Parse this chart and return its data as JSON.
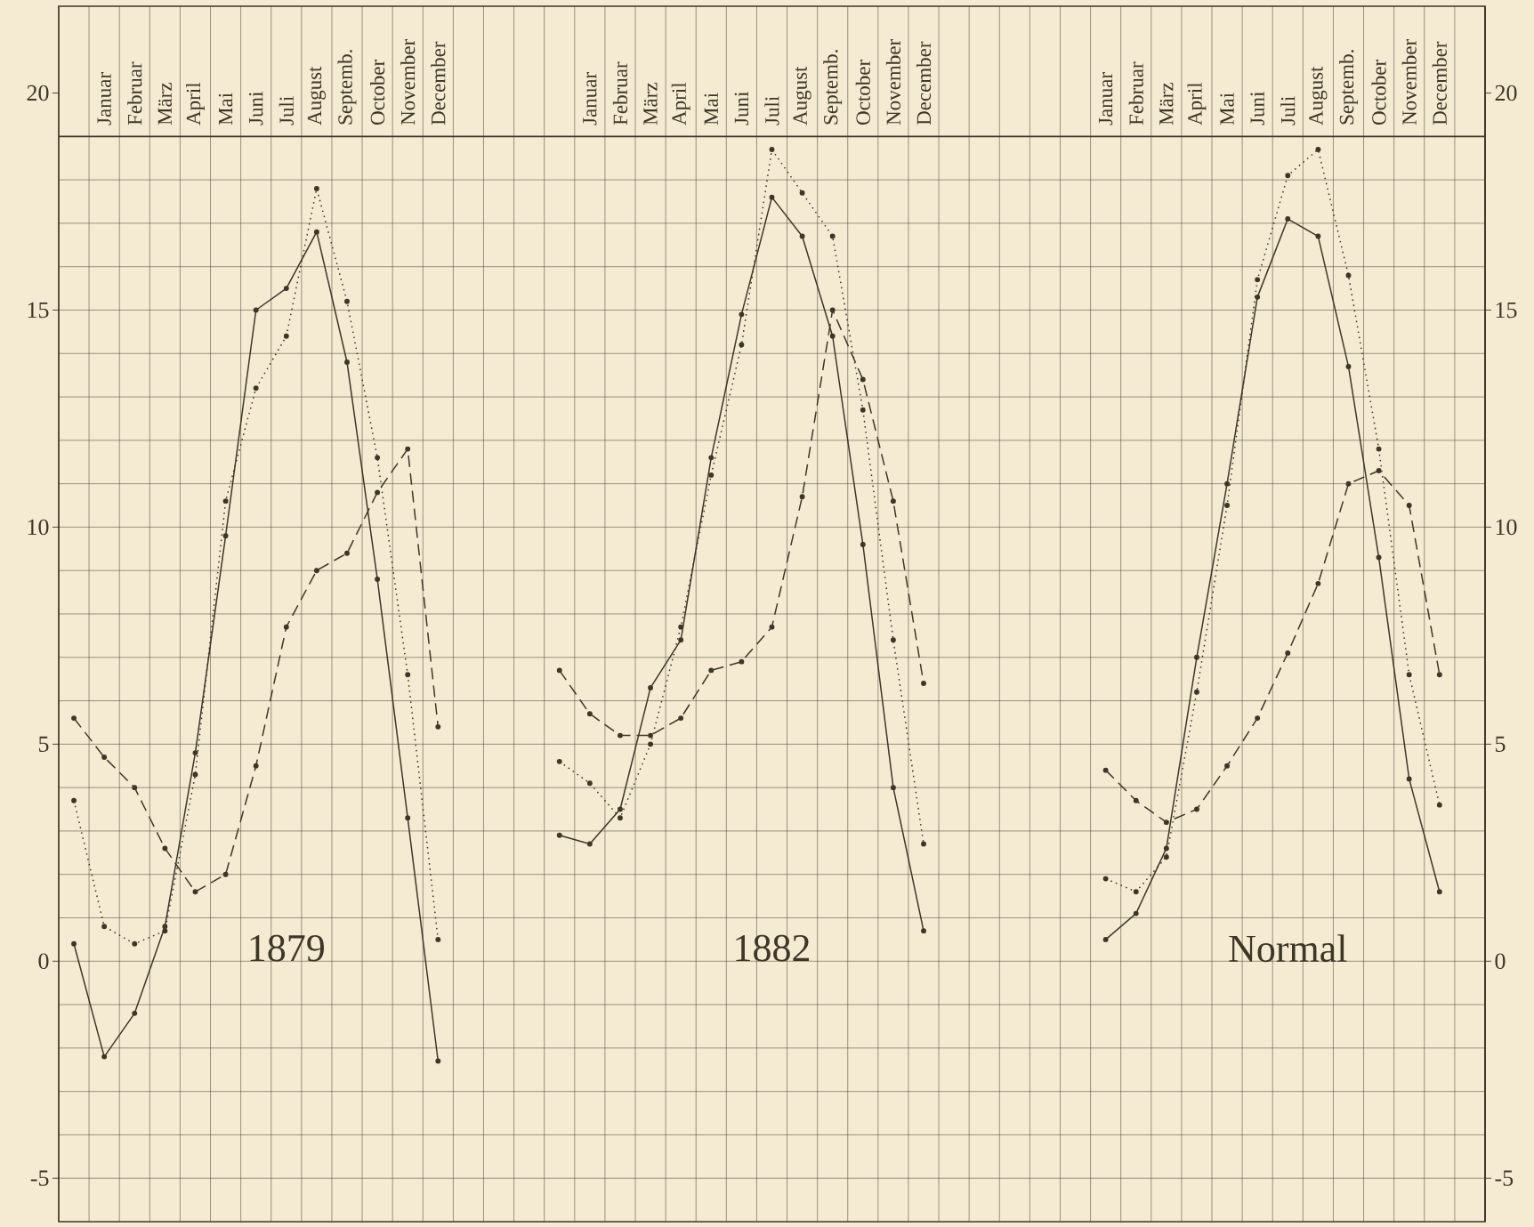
{
  "chart_data": {
    "type": "line",
    "categories": [
      null,
      "Januar",
      "Februar",
      "März",
      "April",
      "Mai",
      "Juni",
      "Juli",
      "August",
      "Septemb.",
      "October",
      "November",
      "December",
      null,
      null,
      null,
      null,
      "Januar",
      "Februar",
      "März",
      "April",
      "Mai",
      "Juni",
      "Juli",
      "August",
      "Septemb.",
      "October",
      "November",
      "December",
      null,
      null,
      null,
      null,
      null,
      "Januar",
      "Februar",
      "März",
      "April",
      "Mai",
      "Juni",
      "Juli",
      "August",
      "Septemb.",
      "October",
      "November",
      "December",
      null
    ],
    "series": [
      {
        "color": "#3d3629",
        "line_style": "solid",
        "values": [
          0.4,
          -2.2,
          -1.2,
          0.8,
          4.8,
          9.8,
          15.0,
          15.5,
          16.8,
          13.8,
          8.8,
          3.3,
          -2.3,
          null,
          null,
          null,
          null,
          null,
          null,
          null,
          null,
          null,
          null,
          null,
          null,
          null,
          null,
          null,
          null,
          null,
          null,
          null,
          null,
          null,
          null,
          null,
          null,
          null,
          null,
          null,
          null,
          null,
          null,
          null,
          null,
          null,
          null
        ]
      },
      {
        "color": "#3d3629",
        "line_style": "dotted",
        "values": [
          3.7,
          0.8,
          0.4,
          0.7,
          4.3,
          10.6,
          13.2,
          14.4,
          17.8,
          15.2,
          11.6,
          6.6,
          0.5,
          null,
          null,
          null,
          null,
          null,
          null,
          null,
          null,
          null,
          null,
          null,
          null,
          null,
          null,
          null,
          null,
          null,
          null,
          null,
          null,
          null,
          null,
          null,
          null,
          null,
          null,
          null,
          null,
          null,
          null,
          null,
          null,
          null,
          null
        ]
      },
      {
        "color": "#3d3629",
        "line_style": "dashed",
        "values": [
          5.6,
          4.7,
          4.0,
          2.6,
          1.6,
          2.0,
          4.5,
          7.7,
          9.0,
          9.4,
          10.8,
          11.8,
          5.4,
          null,
          null,
          null,
          null,
          null,
          null,
          null,
          null,
          null,
          null,
          null,
          null,
          null,
          null,
          null,
          null,
          null,
          null,
          null,
          null,
          null,
          null,
          null,
          null,
          null,
          null,
          null,
          null,
          null,
          null,
          null,
          null,
          null,
          null
        ]
      },
      {
        "color": "#3d3629",
        "line_style": "solid",
        "values": [
          null,
          null,
          null,
          null,
          null,
          null,
          null,
          null,
          null,
          null,
          null,
          null,
          null,
          null,
          null,
          null,
          2.9,
          2.7,
          3.5,
          6.3,
          7.4,
          11.6,
          14.9,
          17.6,
          16.7,
          14.4,
          9.6,
          4.0,
          0.7,
          null,
          null,
          null,
          null,
          null,
          null,
          null,
          null,
          null,
          null,
          null,
          null,
          null,
          null,
          null,
          null,
          null,
          null
        ]
      },
      {
        "color": "#3d3629",
        "line_style": "dotted",
        "values": [
          null,
          null,
          null,
          null,
          null,
          null,
          null,
          null,
          null,
          null,
          null,
          null,
          null,
          null,
          null,
          null,
          4.6,
          4.1,
          3.3,
          5.0,
          7.7,
          11.2,
          14.2,
          18.7,
          17.7,
          16.7,
          12.7,
          7.4,
          2.7,
          null,
          null,
          null,
          null,
          null,
          null,
          null,
          null,
          null,
          null,
          null,
          null,
          null,
          null,
          null,
          null,
          null,
          null
        ]
      },
      {
        "color": "#3d3629",
        "line_style": "dashed",
        "values": [
          null,
          null,
          null,
          null,
          null,
          null,
          null,
          null,
          null,
          null,
          null,
          null,
          null,
          null,
          null,
          null,
          6.7,
          5.7,
          5.2,
          5.2,
          5.6,
          6.7,
          6.9,
          7.7,
          10.7,
          15.0,
          13.4,
          10.6,
          6.4,
          null,
          null,
          null,
          null,
          null,
          null,
          null,
          null,
          null,
          null,
          null,
          null,
          null,
          null,
          null,
          null,
          null,
          null
        ]
      },
      {
        "color": "#3d3629",
        "line_style": "solid",
        "values": [
          null,
          null,
          null,
          null,
          null,
          null,
          null,
          null,
          null,
          null,
          null,
          null,
          null,
          null,
          null,
          null,
          null,
          null,
          null,
          null,
          null,
          null,
          null,
          null,
          null,
          null,
          null,
          null,
          null,
          null,
          null,
          null,
          null,
          null,
          0.5,
          1.1,
          2.6,
          7.0,
          11.0,
          15.3,
          17.1,
          16.7,
          13.7,
          9.3,
          4.2,
          1.6,
          null
        ]
      },
      {
        "color": "#3d3629",
        "line_style": "dotted",
        "values": [
          null,
          null,
          null,
          null,
          null,
          null,
          null,
          null,
          null,
          null,
          null,
          null,
          null,
          null,
          null,
          null,
          null,
          null,
          null,
          null,
          null,
          null,
          null,
          null,
          null,
          null,
          null,
          null,
          null,
          null,
          null,
          null,
          null,
          null,
          1.9,
          1.6,
          2.4,
          6.2,
          10.5,
          15.7,
          18.1,
          18.7,
          15.8,
          11.8,
          6.6,
          3.6,
          null
        ]
      },
      {
        "color": "#3d3629",
        "line_style": "dashed",
        "values": [
          null,
          null,
          null,
          null,
          null,
          null,
          null,
          null,
          null,
          null,
          null,
          null,
          null,
          null,
          null,
          null,
          null,
          null,
          null,
          null,
          null,
          null,
          null,
          null,
          null,
          null,
          null,
          null,
          null,
          null,
          null,
          null,
          null,
          null,
          4.4,
          3.7,
          3.2,
          3.5,
          4.5,
          5.6,
          7.1,
          8.7,
          11.0,
          11.3,
          10.5,
          6.6,
          null
        ]
      }
    ],
    "ylim": [
      -6,
      22
    ],
    "yticks": [
      -5,
      0,
      5,
      10,
      15,
      20
    ],
    "y2lim": [
      -6,
      22
    ],
    "y2ticks": [
      -5,
      0,
      5,
      10,
      15,
      20
    ],
    "grid": true,
    "marker": "circle",
    "annotations": [
      "1879",
      "1882",
      "Normal"
    ]
  }
}
